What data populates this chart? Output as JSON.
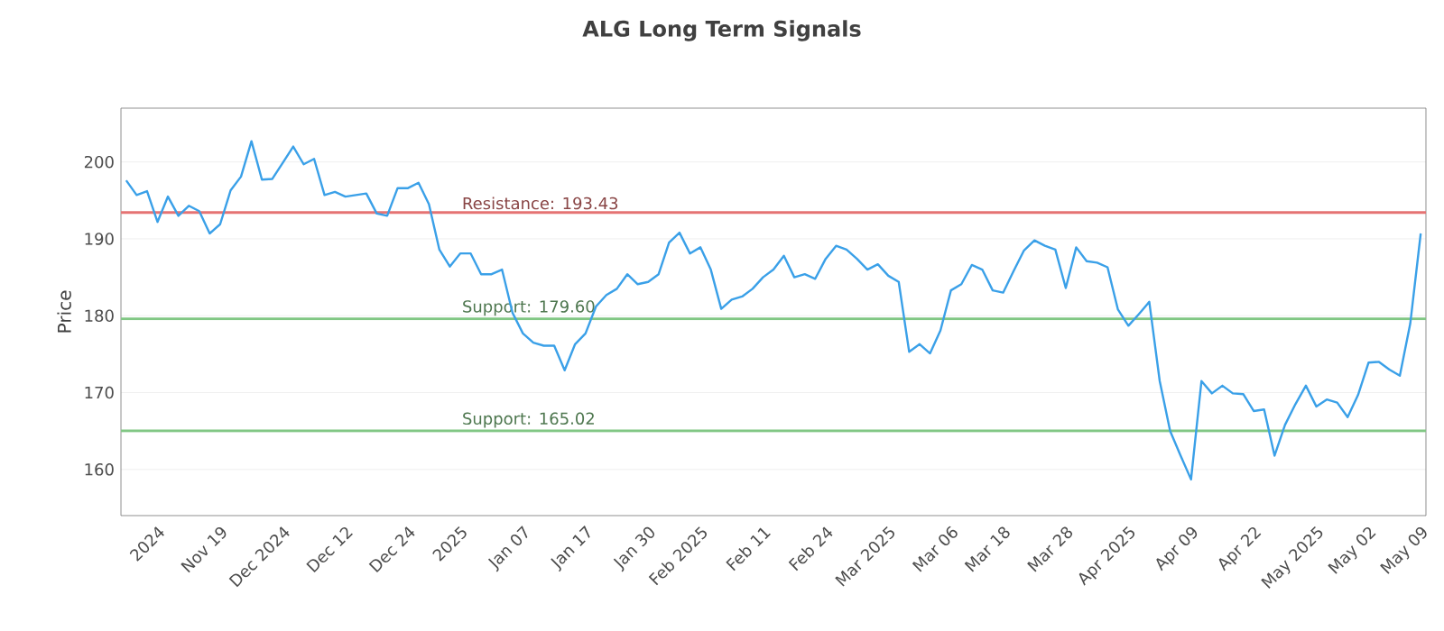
{
  "chart_data": {
    "type": "line",
    "title": "ALG Long Term Signals",
    "ylabel": "Price",
    "categories": [
      null,
      null,
      null,
      "2024",
      null,
      null,
      null,
      null,
      null,
      "Nov 19",
      null,
      null,
      null,
      null,
      null,
      "Dec 2024",
      null,
      null,
      null,
      null,
      null,
      "Dec 12",
      null,
      null,
      null,
      null,
      null,
      "Dec 24",
      null,
      null,
      null,
      null,
      "2025",
      null,
      null,
      null,
      null,
      null,
      "Jan 07",
      null,
      null,
      null,
      null,
      null,
      "Jan 17",
      null,
      null,
      null,
      null,
      null,
      "Jan 30",
      null,
      null,
      null,
      null,
      "Feb 2025",
      null,
      null,
      null,
      null,
      null,
      "Feb 11",
      null,
      null,
      null,
      null,
      null,
      "Feb 24",
      null,
      null,
      null,
      null,
      null,
      "Mar 2025",
      null,
      null,
      null,
      null,
      null,
      "Mar 06",
      null,
      null,
      null,
      null,
      "Mar 18",
      null,
      null,
      null,
      null,
      null,
      "Mar 28",
      null,
      null,
      null,
      null,
      null,
      "Apr 2025",
      null,
      null,
      null,
      null,
      null,
      "Apr 09",
      null,
      null,
      null,
      null,
      null,
      "Apr 22",
      null,
      null,
      null,
      null,
      null,
      "May 2025",
      null,
      null,
      null,
      null,
      "May 02",
      null,
      null,
      null,
      null,
      "May 09"
    ],
    "series": [
      {
        "color": "#3aa0e8",
        "values": [
          197.6,
          195.7,
          196.2,
          192.2,
          195.5,
          193.0,
          194.3,
          193.6,
          190.7,
          191.9,
          196.3,
          198.1,
          202.7,
          197.7,
          197.8,
          199.9,
          202.0,
          199.7,
          200.4,
          195.7,
          196.1,
          195.5,
          195.7,
          195.9,
          193.3,
          193.0,
          196.6,
          196.6,
          197.3,
          194.5,
          188.6,
          186.4,
          188.1,
          188.1,
          185.4,
          185.4,
          186.0,
          180.4,
          177.7,
          176.5,
          176.1,
          176.1,
          172.9,
          176.3,
          177.7,
          181.2,
          182.7,
          183.5,
          185.4,
          184.1,
          184.4,
          185.4,
          189.5,
          190.8,
          188.1,
          188.9,
          186.0,
          180.9,
          182.1,
          182.5,
          183.5,
          185.0,
          186.0,
          187.8,
          185.0,
          185.4,
          184.8,
          187.4,
          189.1,
          188.6,
          187.4,
          186.0,
          186.7,
          185.2,
          184.4,
          175.3,
          176.3,
          175.1,
          178.1,
          183.3,
          184.1,
          186.6,
          186.0,
          183.3,
          183.0,
          185.8,
          188.5,
          189.8,
          189.1,
          188.6,
          183.6,
          188.9,
          187.1,
          186.9,
          186.3,
          180.8,
          178.7,
          180.2,
          181.8,
          171.5,
          165.0,
          161.8,
          158.7,
          171.5,
          169.9,
          170.9,
          169.9,
          169.8,
          167.6,
          167.8,
          161.8,
          165.8,
          168.5,
          170.9,
          168.2,
          169.1,
          168.7,
          166.8,
          169.7,
          173.9,
          174.0,
          173.0,
          172.2,
          179.0,
          190.7
        ]
      }
    ],
    "ylim": [
      154,
      207
    ],
    "yticks": [
      160,
      170,
      180,
      190,
      200
    ],
    "grid": "y",
    "marker": "none",
    "line_style": "solid",
    "ref_lines": [
      {
        "axis": "y",
        "value": 193.43,
        "label": "Resistance: 193.43",
        "color": "#e57373"
      },
      {
        "axis": "y",
        "value": 179.6,
        "label": "Support: 179.60",
        "color": "#81c784"
      },
      {
        "axis": "y",
        "value": 165.02,
        "label": "Support: 165.02",
        "color": "#81c784"
      }
    ]
  }
}
